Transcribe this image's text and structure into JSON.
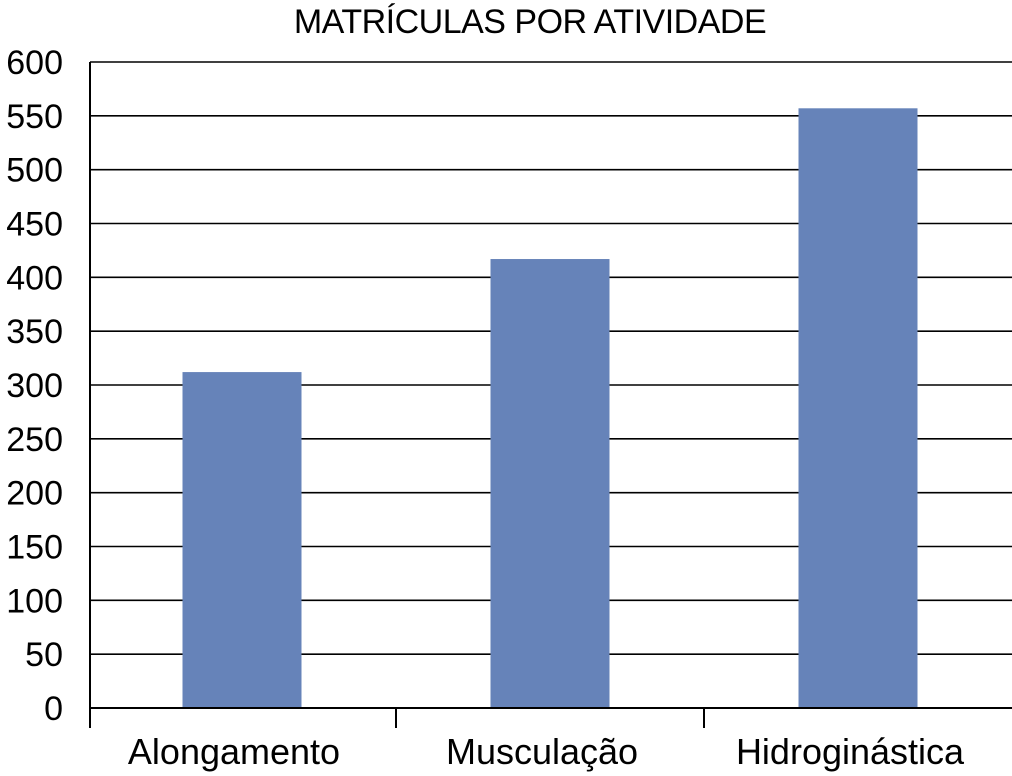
{
  "chart_data": {
    "type": "bar",
    "title": "MATRÍCULAS POR ATIVIDADE",
    "xlabel": "",
    "ylabel": "",
    "categories": [
      "Alongamento",
      "Musculação",
      "Hidroginástica"
    ],
    "series": [
      {
        "values": [
          312,
          417,
          557
        ]
      }
    ],
    "ylim": [
      0,
      600
    ],
    "yticks": [
      0,
      50,
      100,
      150,
      200,
      250,
      300,
      350,
      400,
      450,
      500,
      550,
      600
    ],
    "grid": true,
    "legend": "none",
    "colors": {
      "bar": "#6683b9",
      "grid": "#000000",
      "background": "#ffffff"
    }
  }
}
